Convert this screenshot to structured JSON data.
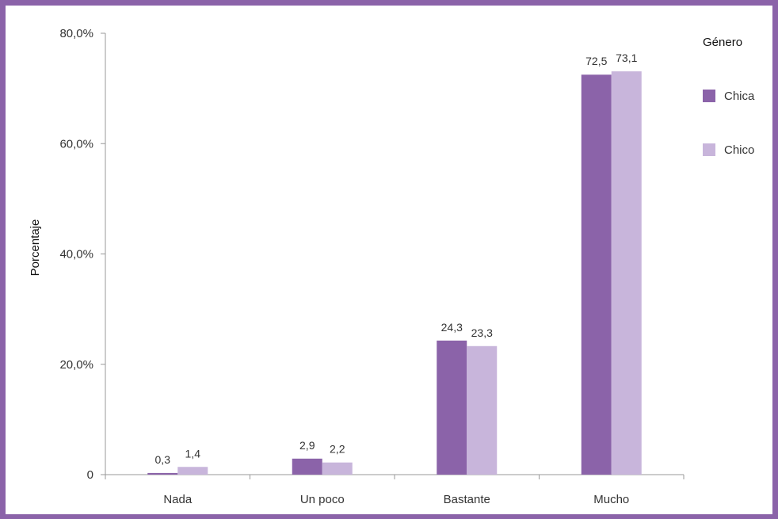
{
  "chart_data": {
    "type": "bar",
    "categories": [
      "Nada",
      "Un poco",
      "Bastante",
      "Mucho"
    ],
    "series": [
      {
        "name": "Chica",
        "values": [
          0.3,
          2.9,
          24.3,
          72.5
        ],
        "labels": [
          "0,3",
          "2,9",
          "24,3",
          "72,5"
        ],
        "color": "#8b63a9"
      },
      {
        "name": "Chico",
        "values": [
          1.4,
          2.2,
          23.3,
          73.1
        ],
        "labels": [
          "1,4",
          "2,2",
          "23,3",
          "73,1"
        ],
        "color": "#c8b5db"
      }
    ],
    "ylabel": "Porcentaje",
    "ylim": [
      0,
      80
    ],
    "yticks": [
      0,
      20,
      40,
      60,
      80
    ],
    "ytick_labels": [
      "0",
      "20,0%",
      "40,0%",
      "60,0%",
      "80,0%"
    ],
    "grid": false,
    "legend": {
      "title": "Género",
      "placement": "right"
    }
  },
  "colors": {
    "frame": "#8b63a9"
  }
}
